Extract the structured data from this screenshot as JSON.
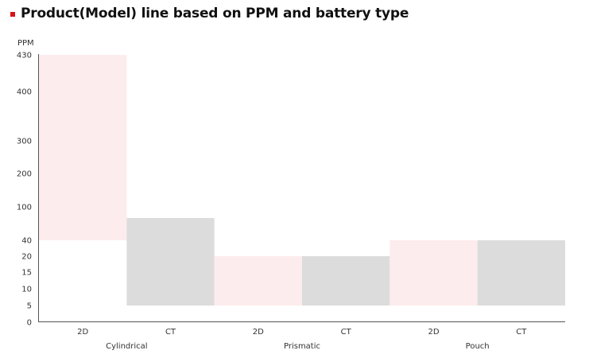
{
  "title": "Product(Model) line based on PPM and battery type",
  "chart_data": {
    "type": "bar",
    "subtype": "floating-range",
    "ylabel": "PPM",
    "yticks": [
      {
        "value": 430,
        "label": "430"
      },
      {
        "value": 400,
        "label": "400"
      },
      {
        "value": 300,
        "label": "300"
      },
      {
        "value": 200,
        "label": "200"
      },
      {
        "value": 100,
        "label": "100"
      },
      {
        "value": 40,
        "label": "40"
      },
      {
        "value": 20,
        "label": "20"
      },
      {
        "value": 15,
        "label": "15"
      },
      {
        "value": 10,
        "label": "10"
      },
      {
        "value": 5,
        "label": "5"
      },
      {
        "value": 0,
        "label": "0"
      }
    ],
    "scale": "piecewise (label-spaced, non-linear)",
    "grid": false,
    "legend": "none",
    "groups": [
      {
        "label": "Cylindrical",
        "bars": [
          {
            "label": "2D",
            "low": 40,
            "high": 430,
            "color": "#fdeced"
          },
          {
            "label": "CT",
            "low": 5,
            "high": 80,
            "color": "#dcdcdc"
          }
        ]
      },
      {
        "label": "Prismatic",
        "bars": [
          {
            "label": "2D",
            "low": 5,
            "high": 20,
            "color": "#fdeced"
          },
          {
            "label": "CT",
            "low": 5,
            "high": 20,
            "color": "#dcdcdc"
          }
        ]
      },
      {
        "label": "Pouch",
        "bars": [
          {
            "label": "2D",
            "low": 5,
            "high": 40,
            "color": "#fdeced"
          },
          {
            "label": "CT",
            "low": 5,
            "high": 40,
            "color": "#dcdcdc"
          }
        ]
      }
    ]
  }
}
